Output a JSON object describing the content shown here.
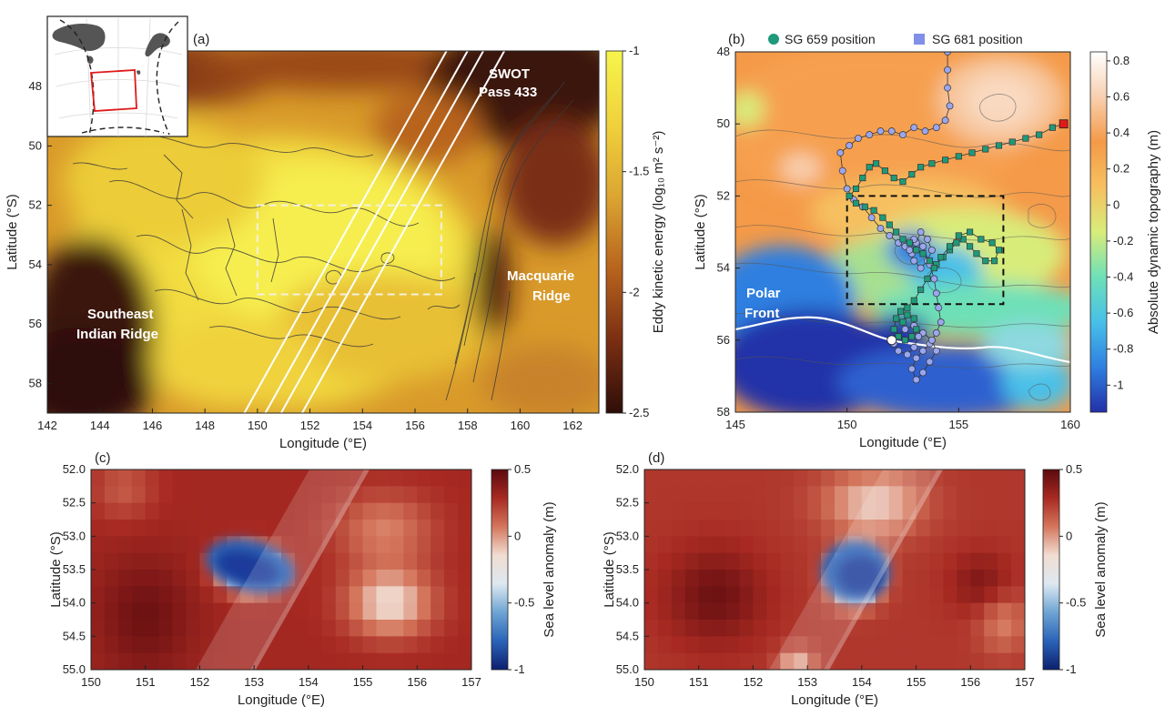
{
  "chart_data": [
    {
      "panel": "(a)",
      "type": "heatmap",
      "xlabel": "Longitude (°E)",
      "ylabel": "Latitude (°S)",
      "xlim": [
        142,
        163
      ],
      "ylim": [
        59,
        46.8
      ],
      "xticks": [
        142,
        144,
        146,
        148,
        150,
        152,
        154,
        156,
        158,
        160,
        162
      ],
      "yticks": [
        48,
        50,
        52,
        54,
        56,
        58
      ],
      "colorbar": {
        "label": "Eddy kinetic energy (log₁₀ m² s⁻²)",
        "range": [
          -2.5,
          -1
        ],
        "ticks": [
          "-1",
          "-1.5",
          "-2",
          "-2.5"
        ],
        "tick_values": [
          -1,
          -1.5,
          -2,
          -2.5
        ],
        "colors": [
          "#2e0e08",
          "#7a2e12",
          "#b8641e",
          "#dba632",
          "#f0d23c",
          "#f6f54c"
        ]
      },
      "annotations": [
        "SWOT Pass 433",
        "Macquarie Ridge",
        "Southeast Indian Ridge"
      ],
      "box": {
        "lon": [
          150,
          157
        ],
        "lat": [
          52,
          55
        ]
      },
      "swot_swaths": [
        {
          "lon_start": 149.5,
          "lon_end": 157.2
        },
        {
          "lon_start": 150.3,
          "lon_end": 158.0
        },
        {
          "lon_start": 150.9,
          "lon_end": 158.6
        },
        {
          "lon_start": 151.7,
          "lon_end": 159.4
        }
      ]
    },
    {
      "panel": "(b)",
      "type": "heatmap",
      "xlabel": "Longitude (°E)",
      "ylabel": "Latitude (°S)",
      "xlim": [
        145,
        160
      ],
      "ylim": [
        58,
        48
      ],
      "xticks": [
        145,
        150,
        155,
        160
      ],
      "yticks": [
        48,
        50,
        52,
        54,
        56,
        58
      ],
      "colorbar": {
        "label": "Absolute dynamic topography (m)",
        "range": [
          -1.15,
          0.85
        ],
        "ticks": [
          "0.8",
          "0.6",
          "0.4",
          "0.2",
          "0",
          "-0.2",
          "-0.4",
          "-0.6",
          "-0.8",
          "-1"
        ],
        "tick_values": [
          0.8,
          0.6,
          0.4,
          0.2,
          0,
          -0.2,
          -0.4,
          -0.6,
          -0.8,
          -1
        ],
        "colors": [
          "#2330a8",
          "#2f7fe0",
          "#48c0e8",
          "#6ee0b8",
          "#d8ec7a",
          "#f6c060",
          "#f49a48",
          "#f8d0b0",
          "#ffffff"
        ]
      },
      "legend": {
        "placement": "top",
        "entries": [
          "SG 659 position",
          "SG 681 position"
        ],
        "colors": [
          "#1e9a7a",
          "#8090e8"
        ]
      },
      "annotations": [
        "Polar Front"
      ],
      "box": {
        "lon": [
          150,
          157
        ],
        "lat": [
          52,
          55
        ]
      },
      "series": [
        {
          "name": "SG 659 position",
          "points": [
            [
              159.7,
              50.0
            ],
            [
              159.2,
              50.1
            ],
            [
              158.6,
              50.3
            ],
            [
              158.0,
              50.4
            ],
            [
              157.4,
              50.5
            ],
            [
              156.8,
              50.6
            ],
            [
              156.2,
              50.7
            ],
            [
              155.6,
              50.8
            ],
            [
              155.0,
              50.9
            ],
            [
              154.4,
              51.0
            ],
            [
              153.8,
              51.1
            ],
            [
              153.3,
              51.2
            ],
            [
              152.9,
              51.4
            ],
            [
              152.5,
              51.6
            ],
            [
              152.1,
              51.5
            ],
            [
              151.7,
              51.3
            ],
            [
              151.3,
              51.1
            ],
            [
              151.0,
              51.2
            ],
            [
              150.7,
              51.5
            ],
            [
              150.4,
              51.8
            ],
            [
              150.1,
              52.0
            ],
            [
              150.4,
              52.2
            ],
            [
              150.8,
              52.3
            ],
            [
              151.2,
              52.4
            ],
            [
              151.6,
              52.6
            ],
            [
              151.9,
              52.8
            ],
            [
              152.2,
              53.0
            ],
            [
              152.5,
              53.2
            ],
            [
              152.8,
              53.3
            ],
            [
              153.1,
              53.5
            ],
            [
              153.4,
              53.6
            ],
            [
              153.7,
              53.8
            ],
            [
              154.0,
              53.9
            ],
            [
              154.3,
              53.7
            ],
            [
              154.6,
              53.5
            ],
            [
              154.9,
              53.3
            ],
            [
              155.2,
              53.2
            ],
            [
              155.5,
              53.4
            ],
            [
              155.8,
              53.6
            ],
            [
              156.2,
              53.8
            ],
            [
              156.6,
              53.8
            ],
            [
              156.8,
              53.5
            ],
            [
              156.5,
              53.3
            ],
            [
              156.0,
              53.2
            ],
            [
              155.5,
              53.0
            ],
            [
              155.0,
              53.1
            ],
            [
              154.6,
              53.4
            ],
            [
              154.2,
              53.7
            ],
            [
              153.9,
              54.0
            ],
            [
              153.6,
              54.3
            ],
            [
              153.3,
              54.6
            ],
            [
              153.0,
              54.9
            ],
            [
              152.7,
              55.1
            ],
            [
              152.4,
              55.2
            ],
            [
              152.2,
              55.4
            ],
            [
              152.1,
              55.7
            ],
            [
              152.3,
              55.9
            ],
            [
              152.6,
              56.0
            ],
            [
              152.9,
              55.9
            ],
            [
              153.1,
              55.7
            ],
            [
              153.0,
              55.4
            ],
            [
              152.7,
              55.3
            ],
            [
              152.5,
              55.5
            ]
          ]
        },
        {
          "name": "SG 681 position",
          "points": [
            [
              154.5,
              48.0
            ],
            [
              154.5,
              48.5
            ],
            [
              154.5,
              49.0
            ],
            [
              154.6,
              49.5
            ],
            [
              154.4,
              49.9
            ],
            [
              154.0,
              50.1
            ],
            [
              153.5,
              50.2
            ],
            [
              153.0,
              50.1
            ],
            [
              152.5,
              50.3
            ],
            [
              152.0,
              50.2
            ],
            [
              151.5,
              50.2
            ],
            [
              151.0,
              50.3
            ],
            [
              150.5,
              50.4
            ],
            [
              150.1,
              50.6
            ],
            [
              149.7,
              50.8
            ],
            [
              149.8,
              51.3
            ],
            [
              150.0,
              51.8
            ],
            [
              150.3,
              52.1
            ],
            [
              150.7,
              52.3
            ],
            [
              151.1,
              52.6
            ],
            [
              151.5,
              52.9
            ],
            [
              151.9,
              53.1
            ],
            [
              152.3,
              53.3
            ],
            [
              152.6,
              53.4
            ],
            [
              152.9,
              53.6
            ],
            [
              153.1,
              53.3
            ],
            [
              153.3,
              53.0
            ],
            [
              153.6,
              53.2
            ],
            [
              153.8,
              53.5
            ],
            [
              153.6,
              53.8
            ],
            [
              153.3,
              54.0
            ],
            [
              153.0,
              53.8
            ],
            [
              152.8,
              53.5
            ],
            [
              153.0,
              53.2
            ],
            [
              153.4,
              53.4
            ],
            [
              153.7,
              53.9
            ],
            [
              153.9,
              54.3
            ],
            [
              154.0,
              54.7
            ],
            [
              154.1,
              55.1
            ],
            [
              154.2,
              55.5
            ],
            [
              154.0,
              55.8
            ],
            [
              153.7,
              56.1
            ],
            [
              153.4,
              56.3
            ],
            [
              153.1,
              56.5
            ],
            [
              152.9,
              56.8
            ],
            [
              153.1,
              57.1
            ],
            [
              153.4,
              56.9
            ],
            [
              153.7,
              56.6
            ],
            [
              154.0,
              56.3
            ],
            [
              153.8,
              56.0
            ],
            [
              153.4,
              55.8
            ],
            [
              153.0,
              55.6
            ],
            [
              152.6,
              55.7
            ],
            [
              152.3,
              55.9
            ],
            [
              152.1,
              56.1
            ],
            [
              152.3,
              56.3
            ],
            [
              152.7,
              56.4
            ],
            [
              153.0,
              56.2
            ],
            [
              153.2,
              55.9
            ]
          ]
        }
      ]
    },
    {
      "panel": "(c)",
      "type": "heatmap",
      "xlabel": "Longitude (°E)",
      "ylabel": "Latitude (°S)",
      "xlim": [
        150,
        157
      ],
      "ylim": [
        55,
        52
      ],
      "xticks": [
        150,
        151,
        152,
        153,
        154,
        155,
        156,
        157
      ],
      "yticks": [
        "52.0",
        "52.5",
        "53.0",
        "53.5",
        "54.0",
        "54.5",
        "55.0"
      ],
      "ytick_values": [
        52,
        52.5,
        53,
        53.5,
        54,
        54.5,
        55
      ],
      "colorbar": {
        "label": "Sea level anomaly (m)",
        "range": [
          -1,
          0.5
        ],
        "ticks": [
          "0.5",
          "0",
          "-0.5",
          "-1"
        ],
        "tick_values": [
          0.5,
          0,
          -0.5,
          -1
        ],
        "colors": [
          "#0d1f6e",
          "#2a63b8",
          "#6ea4d4",
          "#dde8f0",
          "#f1ddd2",
          "#d4765c",
          "#a82a22",
          "#5c0a0e"
        ]
      }
    },
    {
      "panel": "(d)",
      "type": "heatmap",
      "xlabel": "Longitude (°E)",
      "ylabel": "Latitude (°S)",
      "xlim": [
        150,
        157
      ],
      "ylim": [
        55,
        52
      ],
      "xticks": [
        150,
        151,
        152,
        153,
        154,
        155,
        156,
        157
      ],
      "yticks": [
        "52.0",
        "52.5",
        "53.0",
        "53.5",
        "54.0",
        "54.5",
        "55.0"
      ],
      "ytick_values": [
        52,
        52.5,
        53,
        53.5,
        54,
        54.5,
        55
      ],
      "colorbar": {
        "label": "Sea level anomaly (m)",
        "range": [
          -1,
          0.5
        ],
        "ticks": [
          "0.5",
          "0",
          "-0.5",
          "-1"
        ],
        "tick_values": [
          0.5,
          0,
          -0.5,
          -1
        ],
        "colors": [
          "#0d1f6e",
          "#2a63b8",
          "#6ea4d4",
          "#dde8f0",
          "#f1ddd2",
          "#d4765c",
          "#a82a22",
          "#5c0a0e"
        ]
      }
    }
  ],
  "labels": {
    "a_panel": "(a)",
    "b_panel": "(b)",
    "c_panel": "(c)",
    "d_panel": "(d)",
    "swot_1": "SWOT",
    "swot_2": "Pass 433",
    "macq_1": "Macquarie",
    "macq_2": "Ridge",
    "seir_1": "Southeast",
    "seir_2": "Indian Ridge",
    "pf_1": "Polar",
    "pf_2": "Front"
  }
}
